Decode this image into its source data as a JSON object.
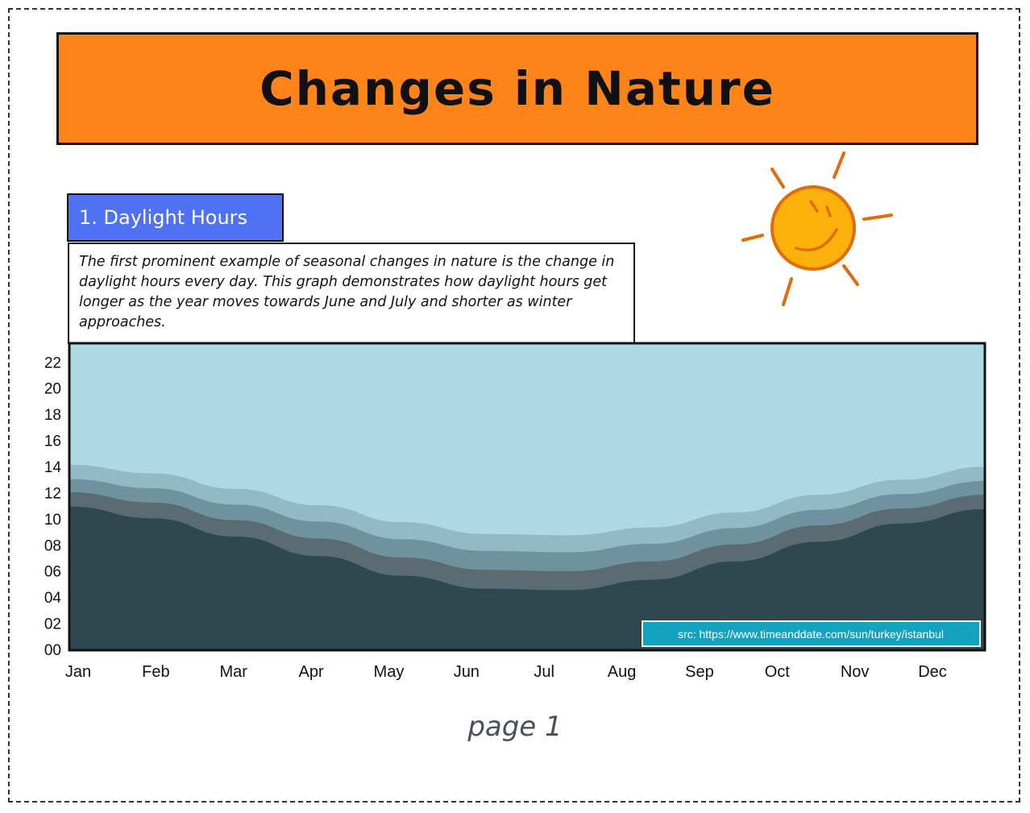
{
  "title": "Changes in Nature",
  "section": {
    "label": "1. Daylight Hours",
    "description": "The first prominent example of seasonal changes in nature is the change in daylight hours every day. This graph demonstrates how daylight hours get longer as the year moves towards June and July and shorter as winter approaches."
  },
  "decor": {
    "sun_icon": "smiling-sun-icon",
    "sun_color": "#fbb10b",
    "sun_outline": "#e36c0a",
    "banner_color": "#fd8419",
    "tag_color": "#4f72f5"
  },
  "chart_data": {
    "type": "area",
    "stacked": true,
    "title": "",
    "xlabel": "",
    "ylabel": "",
    "categories": [
      "Jan",
      "Feb",
      "Mar",
      "Apr",
      "May",
      "Jun",
      "Jul",
      "Aug",
      "Sep",
      "Oct",
      "Nov",
      "Dec"
    ],
    "ylim": [
      0,
      23.5
    ],
    "yticks": [
      "00",
      "02",
      "04",
      "06",
      "08",
      "10",
      "12",
      "14",
      "16",
      "18",
      "20",
      "22"
    ],
    "grid": false,
    "source_label": "src: https://www.timeanddate.com/sun/turkey/istanbul",
    "series": [
      {
        "color": "#2f474f",
        "values": [
          11.0,
          10.1,
          8.7,
          7.2,
          5.7,
          4.7,
          4.6,
          5.4,
          6.8,
          8.3,
          9.7,
          10.8
        ]
      },
      {
        "color": "#5a6b72",
        "values": [
          1.1,
          1.2,
          1.25,
          1.35,
          1.4,
          1.45,
          1.45,
          1.4,
          1.3,
          1.25,
          1.15,
          1.1
        ]
      },
      {
        "color": "#6f929e",
        "values": [
          1.0,
          1.1,
          1.2,
          1.3,
          1.4,
          1.45,
          1.45,
          1.35,
          1.25,
          1.2,
          1.1,
          1.05
        ]
      },
      {
        "color": "#93b9c8",
        "values": [
          1.1,
          1.15,
          1.2,
          1.25,
          1.3,
          1.3,
          1.3,
          1.25,
          1.2,
          1.15,
          1.1,
          1.1
        ]
      },
      {
        "color": "#afd8e5",
        "values": [
          9.3,
          9.95,
          11.15,
          12.4,
          13.7,
          14.6,
          14.7,
          14.1,
          12.95,
          11.6,
          10.45,
          9.45
        ]
      }
    ]
  }
}
